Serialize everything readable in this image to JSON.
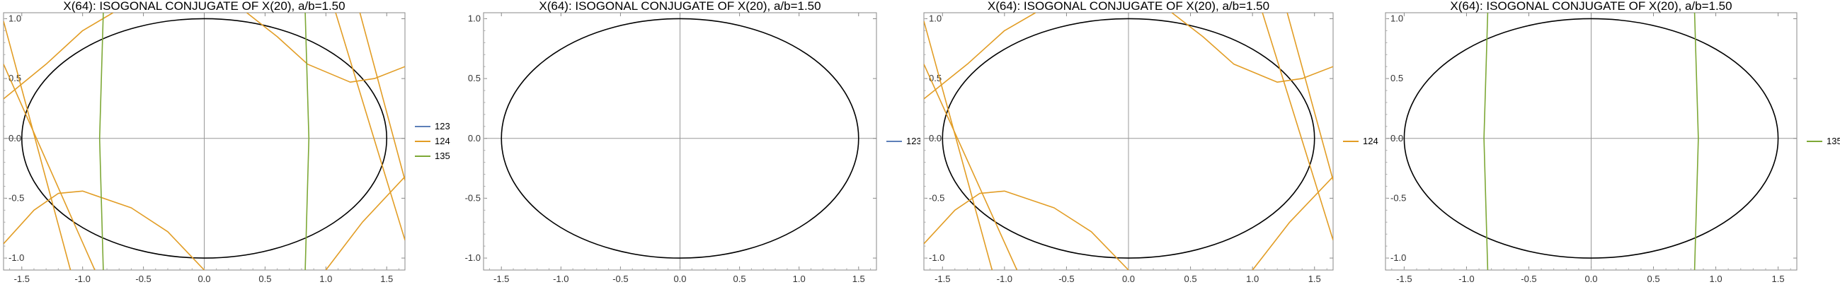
{
  "chart_data": [
    {
      "type": "line",
      "title": "X(64): ISOGONAL CONJUGATE OF X(20), a/b=1.50",
      "xlabel": "",
      "ylabel": "",
      "xlim": [
        -1.65,
        1.65
      ],
      "ylim": [
        -1.1,
        1.05
      ],
      "xticks": [
        "-1.5",
        "-1.0",
        "-0.5",
        "0.0",
        "0.5",
        "1.0",
        "1.5"
      ],
      "yticks": [
        "-1.0",
        "-0.5",
        "0.0",
        "0.5",
        "1.0"
      ],
      "legend": [
        "123",
        "124",
        "135"
      ],
      "legend_position": "right",
      "ellipse": {
        "a": 1.5,
        "b": 1.0
      },
      "series": [
        {
          "name": "123",
          "color": "#5d7fb8",
          "curves": []
        },
        {
          "name": "124",
          "color": "#e29d25",
          "curves": [
            [
              [
                -1.65,
                0.98
              ],
              [
                -1.1,
                -1.1
              ]
            ],
            [
              [
                -1.65,
                0.62
              ],
              [
                -0.9,
                -1.1
              ]
            ],
            [
              [
                -1.65,
                0.33
              ],
              [
                -1.3,
                0.62
              ],
              [
                -1.0,
                0.9
              ],
              [
                -0.75,
                1.05
              ]
            ],
            [
              [
                0.35,
                1.05
              ],
              [
                0.6,
                0.85
              ],
              [
                0.85,
                0.62
              ],
              [
                1.2,
                0.47
              ],
              [
                1.4,
                0.5
              ],
              [
                1.65,
                0.6
              ]
            ],
            [
              [
                1.08,
                1.05
              ],
              [
                1.65,
                -0.85
              ]
            ],
            [
              [
                1.28,
                1.05
              ],
              [
                1.65,
                -0.35
              ]
            ],
            [
              [
                -1.65,
                -0.88
              ],
              [
                -1.4,
                -0.6
              ],
              [
                -1.2,
                -0.46
              ],
              [
                -1.0,
                -0.44
              ],
              [
                -0.6,
                -0.58
              ],
              [
                -0.3,
                -0.78
              ],
              [
                0.0,
                -1.1
              ]
            ],
            [
              [
                1.0,
                -1.1
              ],
              [
                1.3,
                -0.7
              ],
              [
                1.65,
                -0.32
              ]
            ]
          ]
        },
        {
          "name": "135",
          "color": "#7da836",
          "curves": [
            [
              [
                -0.83,
                1.05
              ],
              [
                -0.86,
                0.0
              ],
              [
                -0.83,
                -1.1
              ]
            ],
            [
              [
                0.83,
                1.05
              ],
              [
                0.86,
                0.0
              ],
              [
                0.83,
                -1.1
              ]
            ]
          ]
        }
      ]
    },
    {
      "type": "line",
      "title": "X(64): ISOGONAL CONJUGATE OF X(20), a/b=1.50",
      "xlabel": "",
      "ylabel": "",
      "xlim": [
        -1.65,
        1.65
      ],
      "ylim": [
        -1.1,
        1.05
      ],
      "xticks": [
        "-1.5",
        "-1.0",
        "-0.5",
        "0.0",
        "0.5",
        "1.0",
        "1.5"
      ],
      "yticks": [
        "-1.0",
        "-0.5",
        "0.0",
        "0.5",
        "1.0"
      ],
      "legend": [
        "123"
      ],
      "legend_position": "right",
      "ellipse": {
        "a": 1.5,
        "b": 1.0
      },
      "series": [
        {
          "name": "123",
          "color": "#5d7fb8",
          "curves": []
        }
      ]
    },
    {
      "type": "line",
      "title": "X(64): ISOGONAL CONJUGATE OF X(20), a/b=1.50",
      "xlabel": "",
      "ylabel": "",
      "xlim": [
        -1.65,
        1.65
      ],
      "ylim": [
        -1.1,
        1.05
      ],
      "xticks": [
        "-1.5",
        "-1.0",
        "-0.5",
        "0.0",
        "0.5",
        "1.0",
        "1.5"
      ],
      "yticks": [
        "-1.0",
        "-0.5",
        "0.0",
        "0.5",
        "1.0"
      ],
      "legend": [
        "124"
      ],
      "legend_position": "right",
      "ellipse": {
        "a": 1.5,
        "b": 1.0
      },
      "series": [
        {
          "name": "124",
          "color": "#e29d25",
          "curves": [
            [
              [
                -1.65,
                0.98
              ],
              [
                -1.1,
                -1.1
              ]
            ],
            [
              [
                -1.65,
                0.62
              ],
              [
                -0.9,
                -1.1
              ]
            ],
            [
              [
                -1.65,
                0.33
              ],
              [
                -1.3,
                0.62
              ],
              [
                -1.0,
                0.9
              ],
              [
                -0.75,
                1.05
              ]
            ],
            [
              [
                0.35,
                1.05
              ],
              [
                0.6,
                0.85
              ],
              [
                0.85,
                0.62
              ],
              [
                1.2,
                0.47
              ],
              [
                1.4,
                0.5
              ],
              [
                1.65,
                0.6
              ]
            ],
            [
              [
                1.08,
                1.05
              ],
              [
                1.65,
                -0.85
              ]
            ],
            [
              [
                1.28,
                1.05
              ],
              [
                1.65,
                -0.35
              ]
            ],
            [
              [
                -1.65,
                -0.88
              ],
              [
                -1.4,
                -0.6
              ],
              [
                -1.2,
                -0.46
              ],
              [
                -1.0,
                -0.44
              ],
              [
                -0.6,
                -0.58
              ],
              [
                -0.3,
                -0.78
              ],
              [
                0.0,
                -1.1
              ]
            ],
            [
              [
                1.0,
                -1.1
              ],
              [
                1.3,
                -0.7
              ],
              [
                1.65,
                -0.32
              ]
            ]
          ]
        }
      ]
    },
    {
      "type": "line",
      "title": "X(64): ISOGONAL CONJUGATE OF X(20), a/b=1.50",
      "xlabel": "",
      "ylabel": "",
      "xlim": [
        -1.65,
        1.65
      ],
      "ylim": [
        -1.1,
        1.05
      ],
      "xticks": [
        "-1.5",
        "-1.0",
        "-0.5",
        "0.0",
        "0.5",
        "1.0",
        "1.5"
      ],
      "yticks": [
        "-1.0",
        "-0.5",
        "0.0",
        "0.5",
        "1.0"
      ],
      "legend": [
        "135"
      ],
      "legend_position": "right",
      "ellipse": {
        "a": 1.5,
        "b": 1.0
      },
      "series": [
        {
          "name": "135",
          "color": "#7da836",
          "curves": [
            [
              [
                -0.83,
                1.05
              ],
              [
                -0.86,
                0.0
              ],
              [
                -0.83,
                -1.1
              ]
            ],
            [
              [
                0.83,
                1.05
              ],
              [
                0.86,
                0.0
              ],
              [
                0.83,
                -1.1
              ]
            ]
          ]
        }
      ]
    }
  ]
}
